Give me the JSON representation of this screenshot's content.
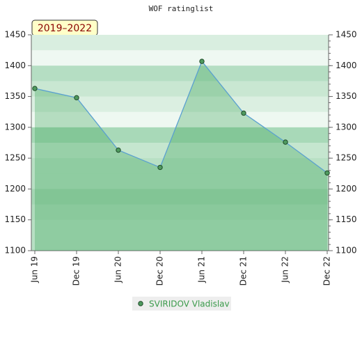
{
  "chart_data": {
    "type": "area",
    "title": "WOF ratinglist",
    "period": "2019–2022",
    "categories": [
      "Jun 19",
      "Dec 19",
      "Jun 20",
      "Dec 20",
      "Jun 21",
      "Dec 21",
      "Jun 22",
      "Dec 22"
    ],
    "series": [
      {
        "name": "SVIRIDOV Vladislav",
        "color": "#5aa0d0",
        "values": [
          1363,
          1348,
          1263,
          1235,
          1407,
          1323,
          1276,
          1226
        ]
      }
    ],
    "ylim": [
      1100,
      1450
    ],
    "yticks": [
      1100,
      1150,
      1200,
      1250,
      1300,
      1350,
      1400,
      1450
    ],
    "grid": true
  }
}
